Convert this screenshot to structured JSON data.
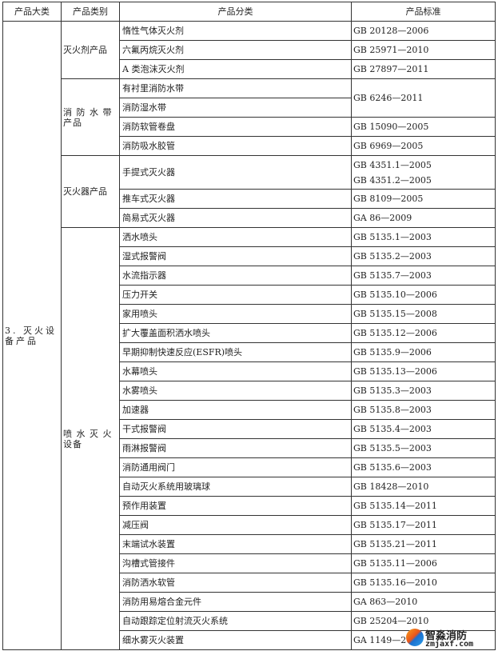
{
  "headers": [
    "产品大类",
    "产品类别",
    "产品分类",
    "产品标准"
  ],
  "major_category": "3. 灭火设备产品",
  "groups": [
    {
      "category": "灭火剂产品",
      "rows": [
        {
          "item": "惰性气体灭火剂",
          "standard": "GB 20128—2006"
        },
        {
          "item": "六氟丙烷灭火剂",
          "standard": "GB 25971—2010"
        },
        {
          "item": "A 类泡沫灭火剂",
          "standard": "GB 27897—2011"
        }
      ]
    },
    {
      "category": "消 防 水 带 产品",
      "rows": [
        {
          "item": "有衬里消防水带",
          "standard": "GB 6246—2011"
        },
        {
          "item": "消防湿水带",
          "standard": ""
        },
        {
          "item": "消防软管卷盘",
          "standard": "GB 15090—2005"
        },
        {
          "item": "消防吸水胶管",
          "standard": "GB 6969—2005"
        }
      ]
    },
    {
      "category": "灭火器产品",
      "rows": [
        {
          "item": "手提式灭火器",
          "standard": "GB 4351.1—2005",
          "standard2": "GB 4351.2—2005"
        },
        {
          "item": "推车式灭火器",
          "standard": "GB 8109—2005"
        },
        {
          "item": "简易式灭火器",
          "standard": "GA 86—2009"
        }
      ]
    },
    {
      "category": "喷 水 灭 火 设备",
      "rows": [
        {
          "item": "洒水喷头",
          "standard": "GB 5135.1—2003"
        },
        {
          "item": "湿式报警阀",
          "standard": "GB 5135.2—2003"
        },
        {
          "item": "水流指示器",
          "standard": "GB 5135.7—2003"
        },
        {
          "item": "压力开关",
          "standard": "GB 5135.10—2006"
        },
        {
          "item": "家用喷头",
          "standard": "GB 5135.15—2008"
        },
        {
          "item": "扩大覆盖面积洒水喷头",
          "standard": "GB 5135.12—2006"
        },
        {
          "item": "早期抑制快速反应(ESFR)喷头",
          "standard": "GB 5135.9—2006"
        },
        {
          "item": "水幕喷头",
          "standard": "GB 5135.13—2006"
        },
        {
          "item": "水雾喷头",
          "standard": "GB 5135.3—2003"
        },
        {
          "item": "加速器",
          "standard": "GB 5135.8—2003"
        },
        {
          "item": "干式报警阀",
          "standard": "GB 5135.4—2003"
        },
        {
          "item": "雨淋报警阀",
          "standard": "GB 5135.5—2003"
        },
        {
          "item": "消防通用阀门",
          "standard": "GB 5135.6—2003"
        },
        {
          "item": "自动灭火系统用玻璃球",
          "standard": "GB 18428—2010"
        },
        {
          "item": "预作用装置",
          "standard": "GB 5135.14—2011"
        },
        {
          "item": "减压阀",
          "standard": "GB 5135.17—2011"
        },
        {
          "item": "末端试水装置",
          "standard": "GB 5135.21—2011"
        },
        {
          "item": "沟槽式管接件",
          "standard": "GB 5135.11—2006"
        },
        {
          "item": "消防洒水软管",
          "standard": "GB 5135.16—2010"
        },
        {
          "item": "消防用易熔合金元件",
          "standard": "GA 863—2010"
        },
        {
          "item": "自动跟踪定位射流灭火系统",
          "standard": "GB 25204—2010"
        },
        {
          "item": "细水雾灭火装置",
          "standard": "GA 1149—20"
        }
      ]
    }
  ],
  "watermark": {
    "title": "智淼消防",
    "url": "zmjaxf.com"
  }
}
